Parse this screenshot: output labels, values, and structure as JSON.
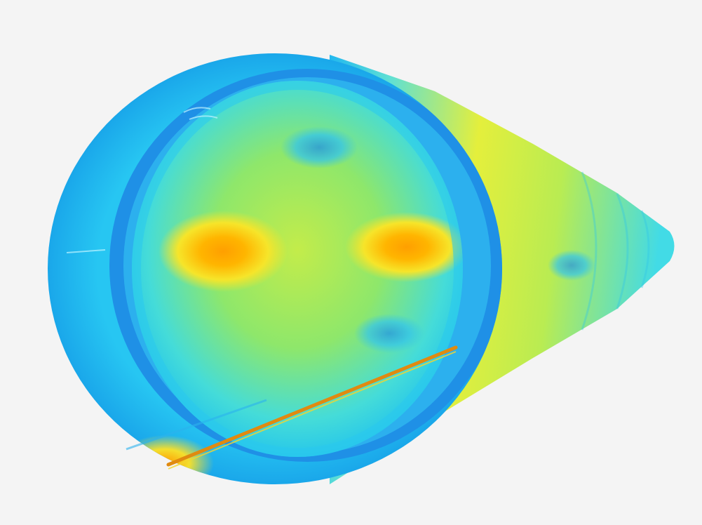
{
  "figure": {
    "background_color": "#f4f4f4",
    "colormap": [
      "#1e78e6",
      "#19bdf0",
      "#45e0dd",
      "#a6ea4e",
      "#f2f23a",
      "#ffb300",
      "#e06a00"
    ],
    "components": [
      "circular-end-face",
      "end-rim-band",
      "inner-ring-band",
      "conical-section",
      "hot-spot-left",
      "hot-spot-right",
      "weld-seam-line"
    ]
  }
}
